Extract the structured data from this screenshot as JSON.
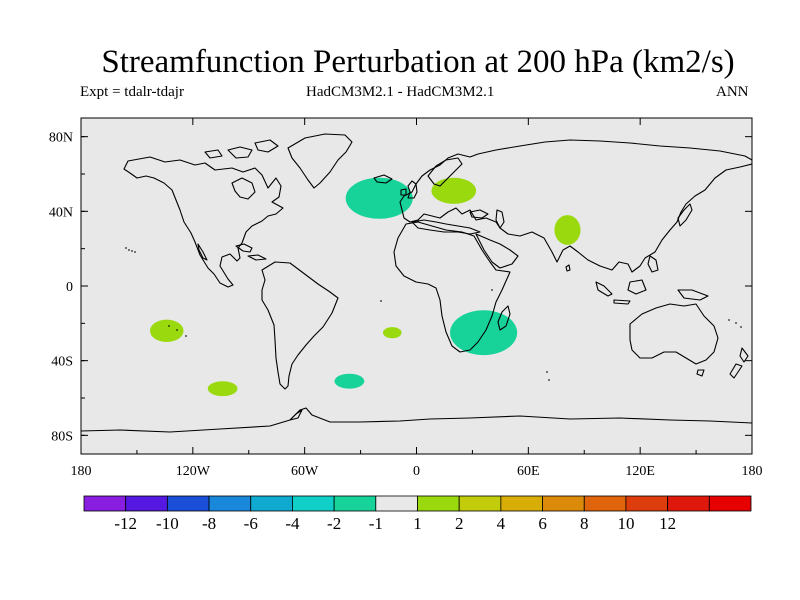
{
  "title": "Streamfunction Perturbation at 200 hPa (km2/s)",
  "subtitle_left": "Expt = tdalr-tdajr",
  "subtitle_center": "HadCM3M2.1 - HadCM3M2.1",
  "subtitle_right": "ANN",
  "map": {
    "projection": "cylindrical-equidistant",
    "lon_range": [
      -180,
      180
    ],
    "lat_range": [
      -90,
      90
    ],
    "background_color": "#e8e8e8",
    "lat_ticks": [
      {
        "value": 80,
        "label": "80N"
      },
      {
        "value": 40,
        "label": "40N"
      },
      {
        "value": 0,
        "label": "0"
      },
      {
        "value": -40,
        "label": "40S"
      },
      {
        "value": -80,
        "label": "80S"
      }
    ],
    "lon_ticks": [
      {
        "value": -180,
        "label": "180"
      },
      {
        "value": -120,
        "label": "120W"
      },
      {
        "value": -60,
        "label": "60W"
      },
      {
        "value": 0,
        "label": "0"
      },
      {
        "value": 60,
        "label": "60E"
      },
      {
        "value": 120,
        "label": "120E"
      },
      {
        "value": 180,
        "label": "180"
      }
    ],
    "anomalies": [
      {
        "name": "north-atlantic-negative",
        "lon": -20,
        "lat": 47,
        "rlon": 18,
        "rlat": 11,
        "color": "#17d39a"
      },
      {
        "name": "eastern-europe-positive",
        "lon": 20,
        "lat": 51,
        "rlon": 12,
        "rlat": 7,
        "color": "#9bd90f"
      },
      {
        "name": "india-positive",
        "lon": 81,
        "lat": 30,
        "rlon": 7,
        "rlat": 8,
        "color": "#9bd90f"
      },
      {
        "name": "southern-africa-negative",
        "lon": 36,
        "lat": -25,
        "rlon": 18,
        "rlat": 12,
        "color": "#17d39a"
      },
      {
        "name": "south-atlantic-small-positive",
        "lon": -13,
        "lat": -25,
        "rlon": 5,
        "rlat": 3,
        "color": "#9bd90f"
      },
      {
        "name": "south-atlantic-negative",
        "lon": -36,
        "lat": -51,
        "rlon": 8,
        "rlat": 4,
        "color": "#17d39a"
      },
      {
        "name": "south-pacific-positive",
        "lon": -134,
        "lat": -24,
        "rlon": 9,
        "rlat": 6,
        "color": "#9bd90f"
      },
      {
        "name": "south-pacific-far-positive",
        "lon": -104,
        "lat": -55,
        "rlon": 8,
        "rlat": 4,
        "color": "#9bd90f"
      }
    ]
  },
  "colorbar": {
    "colors": [
      "#8a1ee0",
      "#5418e0",
      "#1c4fd8",
      "#1988da",
      "#10aad0",
      "#10cfc6",
      "#17d39a",
      "#e8e8e8",
      "#9bd90f",
      "#c2cc0a",
      "#d9ad08",
      "#dc8a0a",
      "#df640b",
      "#dd3d0c",
      "#de190c",
      "#e60000"
    ],
    "labels": [
      "-12",
      "-10",
      "-8",
      "-6",
      "-4",
      "-2",
      "-1",
      "1",
      "2",
      "4",
      "6",
      "8",
      "10",
      "12"
    ]
  }
}
